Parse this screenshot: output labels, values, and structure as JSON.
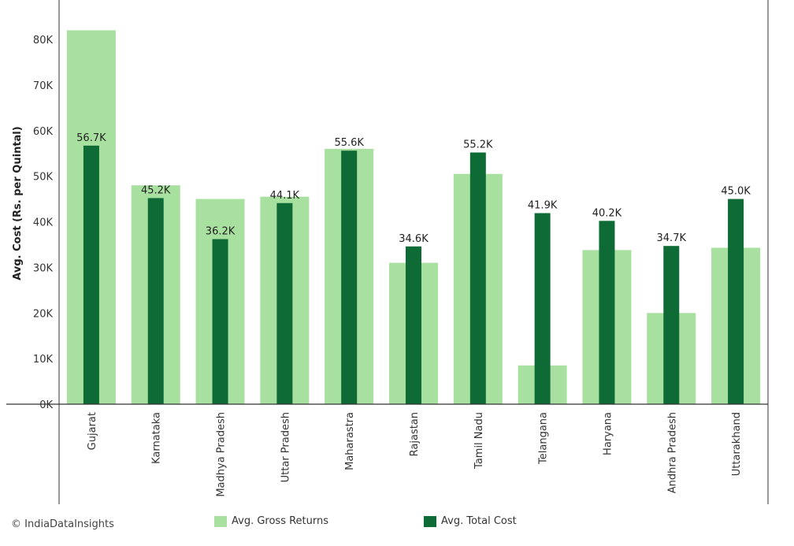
{
  "chart_data": {
    "type": "bar",
    "ylabel": "Avg. Cost (Rs. per Quintal)",
    "yticks": [
      "0K",
      "10K",
      "20K",
      "30K",
      "40K",
      "50K",
      "60K",
      "70K",
      "80K"
    ],
    "ylim": [
      0,
      88000
    ],
    "categories": [
      "Gujarat",
      "Karnataka",
      "Madhya Pradesh",
      "Uttar Pradesh",
      "Maharastra",
      "Rajastan",
      "Tamil Nadu",
      "Telangana",
      "Haryana",
      "Andhra Pradesh",
      "Uttarakhand"
    ],
    "series": [
      {
        "name": "Avg. Gross Returns",
        "color": "#a8e0a0",
        "values": [
          82000,
          48000,
          45000,
          45500,
          56000,
          31000,
          50500,
          8500,
          33800,
          20000,
          34300
        ]
      },
      {
        "name": "Avg. Total Cost",
        "color": "#0e6b35",
        "values": [
          56700,
          45200,
          36200,
          44100,
          55600,
          34600,
          55200,
          41900,
          40200,
          34700,
          45000
        ],
        "labels": [
          "56.7K",
          "45.2K",
          "36.2K",
          "44.1K",
          "55.6K",
          "34.6K",
          "55.2K",
          "41.9K",
          "40.2K",
          "34.7K",
          "45.0K"
        ]
      }
    ],
    "legend_position": "bottom",
    "grid": false
  },
  "credit": "© IndiaDataInsights"
}
